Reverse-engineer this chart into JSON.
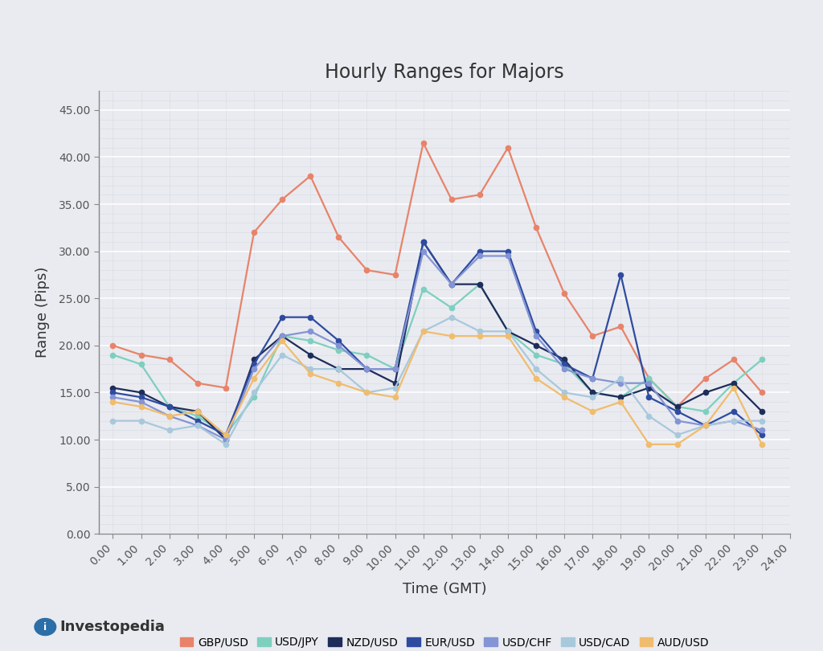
{
  "title": "Hourly Ranges for Majors",
  "xlabel": "Time (GMT)",
  "ylabel": "Range (Pips)",
  "x_labels": [
    "0.00",
    "1.00",
    "2.00",
    "3.00",
    "4.00",
    "5.00",
    "6.00",
    "7.00",
    "8.00",
    "9.00",
    "10.00",
    "11.00",
    "12.00",
    "13.00",
    "14.00",
    "15.00",
    "16.00",
    "17.00",
    "18.00",
    "19.00",
    "20.00",
    "21.00",
    "22.00",
    "23.00",
    "24.00"
  ],
  "ylim": [
    0.0,
    47.0
  ],
  "yticks": [
    0.0,
    5.0,
    10.0,
    15.0,
    20.0,
    25.0,
    30.0,
    35.0,
    40.0,
    45.0
  ],
  "series": {
    "GBP/USD": {
      "color": "#E8836A",
      "values": [
        20.0,
        19.0,
        18.5,
        16.0,
        15.5,
        32.0,
        35.5,
        38.0,
        31.5,
        28.0,
        27.5,
        41.5,
        35.5,
        36.0,
        41.0,
        32.5,
        25.5,
        21.0,
        22.0,
        16.5,
        13.5,
        16.5,
        18.5,
        15.0,
        null
      ]
    },
    "USD/JPY": {
      "color": "#7DCFC0",
      "values": [
        19.0,
        18.0,
        13.5,
        12.5,
        10.5,
        14.5,
        21.0,
        20.5,
        19.5,
        19.0,
        17.5,
        26.0,
        24.0,
        26.5,
        21.5,
        19.0,
        18.0,
        15.0,
        14.5,
        16.5,
        13.5,
        13.0,
        16.0,
        18.5,
        null
      ]
    },
    "NZD/USD": {
      "color": "#1E2D5A",
      "values": [
        15.5,
        15.0,
        13.5,
        13.0,
        10.0,
        18.5,
        21.0,
        19.0,
        17.5,
        17.5,
        16.0,
        31.0,
        26.5,
        26.5,
        21.5,
        20.0,
        18.5,
        15.0,
        14.5,
        15.5,
        13.5,
        15.0,
        16.0,
        13.0,
        null
      ]
    },
    "EUR/USD": {
      "color": "#2E4BA0",
      "values": [
        15.0,
        14.5,
        13.5,
        12.0,
        10.5,
        18.0,
        23.0,
        23.0,
        20.5,
        17.5,
        17.5,
        31.0,
        26.5,
        30.0,
        30.0,
        21.5,
        18.0,
        16.5,
        27.5,
        14.5,
        13.0,
        11.5,
        13.0,
        10.5,
        null
      ]
    },
    "USD/CHF": {
      "color": "#8494D4",
      "values": [
        14.5,
        14.0,
        12.5,
        11.5,
        10.0,
        17.5,
        21.0,
        21.5,
        20.0,
        17.5,
        17.5,
        30.0,
        26.5,
        29.5,
        29.5,
        21.0,
        17.5,
        16.5,
        16.0,
        16.0,
        12.0,
        11.5,
        12.0,
        11.0,
        null
      ]
    },
    "USD/CAD": {
      "color": "#A8C8DC",
      "values": [
        12.0,
        12.0,
        11.0,
        11.5,
        9.5,
        15.0,
        19.0,
        17.5,
        17.5,
        15.0,
        15.5,
        21.5,
        23.0,
        21.5,
        21.5,
        17.5,
        15.0,
        14.5,
        16.5,
        12.5,
        10.5,
        11.5,
        12.0,
        12.0,
        null
      ]
    },
    "AUD/USD": {
      "color": "#F0BC6E",
      "values": [
        14.0,
        13.5,
        12.5,
        13.0,
        10.5,
        16.5,
        20.5,
        17.0,
        16.0,
        15.0,
        14.5,
        21.5,
        21.0,
        21.0,
        21.0,
        16.5,
        14.5,
        13.0,
        14.0,
        9.5,
        9.5,
        11.5,
        15.5,
        9.5,
        null
      ]
    }
  },
  "bg_color": "#E9EBF0",
  "plot_bg_color": "#E9EBF0",
  "grid_major_color": "#FFFFFF",
  "grid_minor_color": "#D8DAE2",
  "spine_color": "#888888",
  "tick_color": "#555555",
  "title_fontsize": 17,
  "axis_label_fontsize": 13,
  "tick_fontsize": 10,
  "legend_fontsize": 10,
  "line_width": 1.6,
  "marker_size": 4.5,
  "logo_text": "Investopedia",
  "logo_color": "#2B6EA8"
}
